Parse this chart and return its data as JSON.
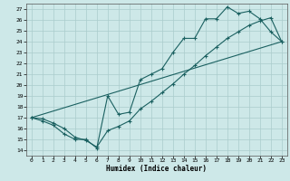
{
  "xlabel": "Humidex (Indice chaleur)",
  "xlim": [
    -0.5,
    23.5
  ],
  "ylim": [
    13.5,
    27.5
  ],
  "xticks": [
    0,
    1,
    2,
    3,
    4,
    5,
    6,
    7,
    8,
    9,
    10,
    11,
    12,
    13,
    14,
    15,
    16,
    17,
    18,
    19,
    20,
    21,
    22,
    23
  ],
  "yticks": [
    14,
    15,
    16,
    17,
    18,
    19,
    20,
    21,
    22,
    23,
    24,
    25,
    26,
    27
  ],
  "background_color": "#cde8e8",
  "grid_color": "#aacccc",
  "line_color": "#1a6060",
  "line1_x": [
    0,
    1,
    2,
    3,
    4,
    5,
    6,
    7,
    8,
    9,
    10,
    11,
    12,
    13,
    14,
    15,
    16,
    17,
    18,
    19,
    20,
    21,
    22,
    23
  ],
  "line1_y": [
    17,
    16.7,
    16.3,
    15.5,
    15.0,
    15.0,
    14.2,
    19.0,
    17.3,
    17.5,
    20.5,
    21.0,
    21.5,
    23.0,
    24.3,
    24.3,
    26.1,
    26.1,
    27.2,
    26.6,
    26.8,
    26.1,
    24.9,
    24.0
  ],
  "line2_x": [
    0,
    1,
    2,
    3,
    4,
    5,
    6,
    7,
    8,
    9,
    10,
    11,
    12,
    13,
    14,
    15,
    16,
    17,
    18,
    19,
    20,
    21,
    22,
    23
  ],
  "line2_y": [
    17,
    16.9,
    16.5,
    16.0,
    15.2,
    14.9,
    14.3,
    15.8,
    16.2,
    16.7,
    17.8,
    18.5,
    19.3,
    20.1,
    21.0,
    21.8,
    22.7,
    23.5,
    24.3,
    24.9,
    25.5,
    25.9,
    26.2,
    24.0
  ],
  "line3_x": [
    0,
    23
  ],
  "line3_y": [
    17,
    24
  ]
}
